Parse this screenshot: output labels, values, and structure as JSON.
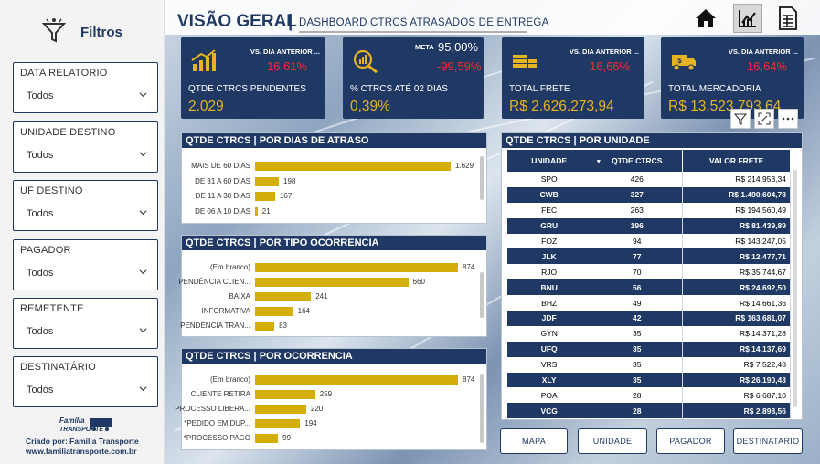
{
  "sidebar": {
    "title": "Filtros",
    "filters": [
      {
        "label": "DATA RELATORIO",
        "value": "Todos"
      },
      {
        "label": "UNIDADE DESTINO",
        "value": "Todos"
      },
      {
        "label": "UF DESTINO",
        "value": "Todos"
      },
      {
        "label": "PAGADOR",
        "value": "Todos"
      },
      {
        "label": "REMETENTE",
        "value": "Todos"
      },
      {
        "label": "DESTINATÁRIO",
        "value": "Todos"
      }
    ],
    "logo_text": "Família Transporte",
    "credit_line1": "Criado por: Familia Transporte",
    "credit_line2": "www.familiatransporte.com.br"
  },
  "header": {
    "title": "VISÃO GERAL",
    "separator": "|",
    "subtitle": "DASHBOARD CTRCS ATRASADOS DE ENTREGA",
    "nav_icons": [
      "home-icon",
      "chart-icon",
      "table-icon"
    ]
  },
  "kpis": [
    {
      "vs_label": "VS. DIA ANTERIOR ...",
      "change": "16,61%",
      "label": "QTDE CTRCS PENDENTES",
      "value": "2.029",
      "icon": "bar-growth-icon"
    },
    {
      "meta_label": "META",
      "meta_value": "95,00%",
      "change": "-99,59%",
      "label": "% CTRCS ATÉ 02 DIAS",
      "value": "0,39%",
      "icon": "magnify-chart-icon"
    },
    {
      "vs_label": "VS. DIA ANTERIOR ...",
      "change": "16,66%",
      "label": "TOTAL FRETE",
      "value": "R$ 2.626.273,94",
      "icon": "money-stack-icon"
    },
    {
      "vs_label": "VS. DIA ANTERIOR ...",
      "change": "16,64%",
      "label": "TOTAL MERCADORIA",
      "value": "R$ 13.523.793,64",
      "icon": "truck-money-icon"
    }
  ],
  "colors": {
    "navy": "#1f3864",
    "gold": "#d4af0b",
    "kpi_value": "#e6b422",
    "negative": "#ff2b2b"
  },
  "charts": [
    {
      "title": "QTDE CTRCS | POR DIAS DE ATRASO",
      "chart_data": {
        "type": "bar",
        "orientation": "horizontal",
        "categories": [
          "MAIS DE 60 DIAS",
          "DE 31 A 60 DIAS",
          "DE 11 A 30 DIAS",
          "DE 06 A 10 DIAS"
        ],
        "values": [
          1629,
          198,
          167,
          21
        ],
        "labels": [
          "1.629",
          "198",
          "167",
          "21"
        ]
      }
    },
    {
      "title": "QTDE CTRCS | POR TIPO OCORRENCIA",
      "chart_data": {
        "type": "bar",
        "orientation": "horizontal",
        "categories": [
          "(Em branco)",
          "PENDÊNCIA CLIEN...",
          "BAIXA",
          "INFORMATIVA",
          "PENDÊNCIA TRAN..."
        ],
        "values": [
          874,
          660,
          241,
          164,
          83
        ],
        "labels": [
          "874",
          "660",
          "241",
          "164",
          "83"
        ]
      }
    },
    {
      "title": "QTDE CTRCS | POR OCORRENCIA",
      "chart_data": {
        "type": "bar",
        "orientation": "horizontal",
        "categories": [
          "(Em branco)",
          "CLIENTE RETIRA",
          "PROCESSO LIBERA...",
          "*PEDIDO EM DUP...",
          "*PROCESSO PAGO"
        ],
        "values": [
          874,
          259,
          220,
          194,
          99
        ],
        "labels": [
          "874",
          "259",
          "220",
          "194",
          "99"
        ]
      }
    }
  ],
  "unit_table": {
    "title": "QTDE CTRCS | POR UNIDADE",
    "columns": [
      "UNIDADE",
      "QTDE CTRCS",
      "VALOR FRETE"
    ],
    "rows": [
      [
        "SPO",
        "426",
        "R$ 214.953,34"
      ],
      [
        "CWB",
        "327",
        "R$ 1.490.604,78"
      ],
      [
        "FEC",
        "263",
        "R$ 194.560,49"
      ],
      [
        "GRU",
        "196",
        "R$ 81.439,89"
      ],
      [
        "FOZ",
        "94",
        "R$ 143.247,05"
      ],
      [
        "JLK",
        "77",
        "R$ 12.477,71"
      ],
      [
        "RJO",
        "70",
        "R$ 35.744,67"
      ],
      [
        "BNU",
        "56",
        "R$ 24.692,50"
      ],
      [
        "BHZ",
        "49",
        "R$ 14.661,36"
      ],
      [
        "JDF",
        "42",
        "R$ 163.681,07"
      ],
      [
        "GYN",
        "35",
        "R$ 14.371,28"
      ],
      [
        "UFQ",
        "35",
        "R$ 14.137,69"
      ],
      [
        "VRS",
        "35",
        "R$ 7.522,48"
      ],
      [
        "XLY",
        "35",
        "R$ 26.190,43"
      ],
      [
        "POA",
        "28",
        "R$ 6.687,10"
      ],
      [
        "VCG",
        "28",
        "R$ 2.898,56"
      ]
    ]
  },
  "bottom_buttons": [
    "MAPA",
    "UNIDADE",
    "PAGADOR",
    "DESTINATARIO"
  ]
}
